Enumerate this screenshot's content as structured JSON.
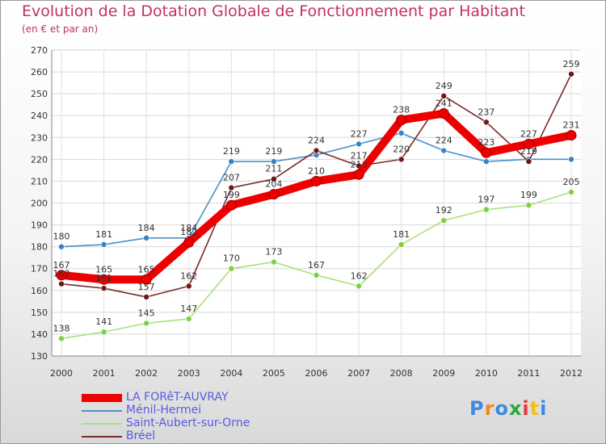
{
  "chart_data": {
    "type": "line",
    "title": "Evolution de la Dotation Globale de Fonctionnement par Habitant",
    "subtitle": "(en € et par an)",
    "xlabel": "",
    "ylabel": "",
    "categories": [
      "2000",
      "2001",
      "2002",
      "2003",
      "2004",
      "2005",
      "2006",
      "2007",
      "2008",
      "2009",
      "2010",
      "2011",
      "2012"
    ],
    "ylim": [
      130,
      270
    ],
    "yticks": [
      130,
      140,
      150,
      160,
      170,
      180,
      190,
      200,
      210,
      220,
      230,
      240,
      250,
      260,
      270
    ],
    "grid": true,
    "legend_position": "bottom-left",
    "series": [
      {
        "name": "Ménil-Hermei",
        "color": "#4a90c8",
        "marker": "#3a82c4",
        "values": [
          180,
          181,
          184,
          184,
          219,
          219,
          222,
          227,
          232,
          224,
          219,
          220,
          220
        ],
        "labels": [
          "180",
          "181",
          "184",
          "184",
          "219",
          "219",
          "",
          "227",
          "",
          "224",
          "",
          "",
          ""
        ]
      },
      {
        "name": "Saint-Aubert-sur-Orne",
        "color": "#a8e07c",
        "marker": "#7ed040",
        "values": [
          138,
          141,
          145,
          147,
          170,
          173,
          167,
          162,
          181,
          192,
          197,
          199,
          205
        ],
        "labels": [
          "138",
          "141",
          "145",
          "147",
          "170",
          "173",
          "167",
          "162",
          "181",
          "192",
          "197",
          "199",
          "205"
        ]
      },
      {
        "name": "Bréel",
        "color": "#7a2a2a",
        "marker": "#6a1818",
        "values": [
          163,
          161,
          157,
          162,
          207,
          211,
          224,
          217,
          220,
          249,
          237,
          219,
          259
        ],
        "labels": [
          "163",
          "161",
          "157",
          "162",
          "207",
          "211",
          "224",
          "217",
          "220",
          "249",
          "237",
          "219",
          "259"
        ]
      },
      {
        "name": "LA FORêT-AUVRAY",
        "color": "#ee0000",
        "marker": "#ee0000",
        "values": [
          167,
          165,
          165,
          182,
          199,
          204,
          210,
          213,
          238,
          241,
          223,
          227,
          231
        ],
        "labels": [
          "167",
          "165",
          "165",
          "182",
          "199",
          "204",
          "210",
          "213",
          "238",
          "241",
          "223",
          "227",
          "231"
        ]
      }
    ]
  },
  "legend": [
    {
      "label": "LA FORêT-AUVRAY",
      "color": "#ee0000",
      "thickness": 10
    },
    {
      "label": "Ménil-Hermei",
      "color": "#4a90c8",
      "thickness": 2
    },
    {
      "label": "Saint-Aubert-sur-Orne",
      "color": "#a8e07c",
      "thickness": 2
    },
    {
      "label": "Bréel",
      "color": "#7a2a2a",
      "thickness": 2
    }
  ],
  "logo": {
    "text": "Proxiti",
    "letters": [
      "P",
      "r",
      "o",
      "x",
      "i",
      "t",
      "i"
    ],
    "colors": [
      "#3c8be0",
      "#f08a1a",
      "#3c8be0",
      "#2aa83a",
      "#e03a3a",
      "#f0c020",
      "#3c8be0"
    ]
  }
}
